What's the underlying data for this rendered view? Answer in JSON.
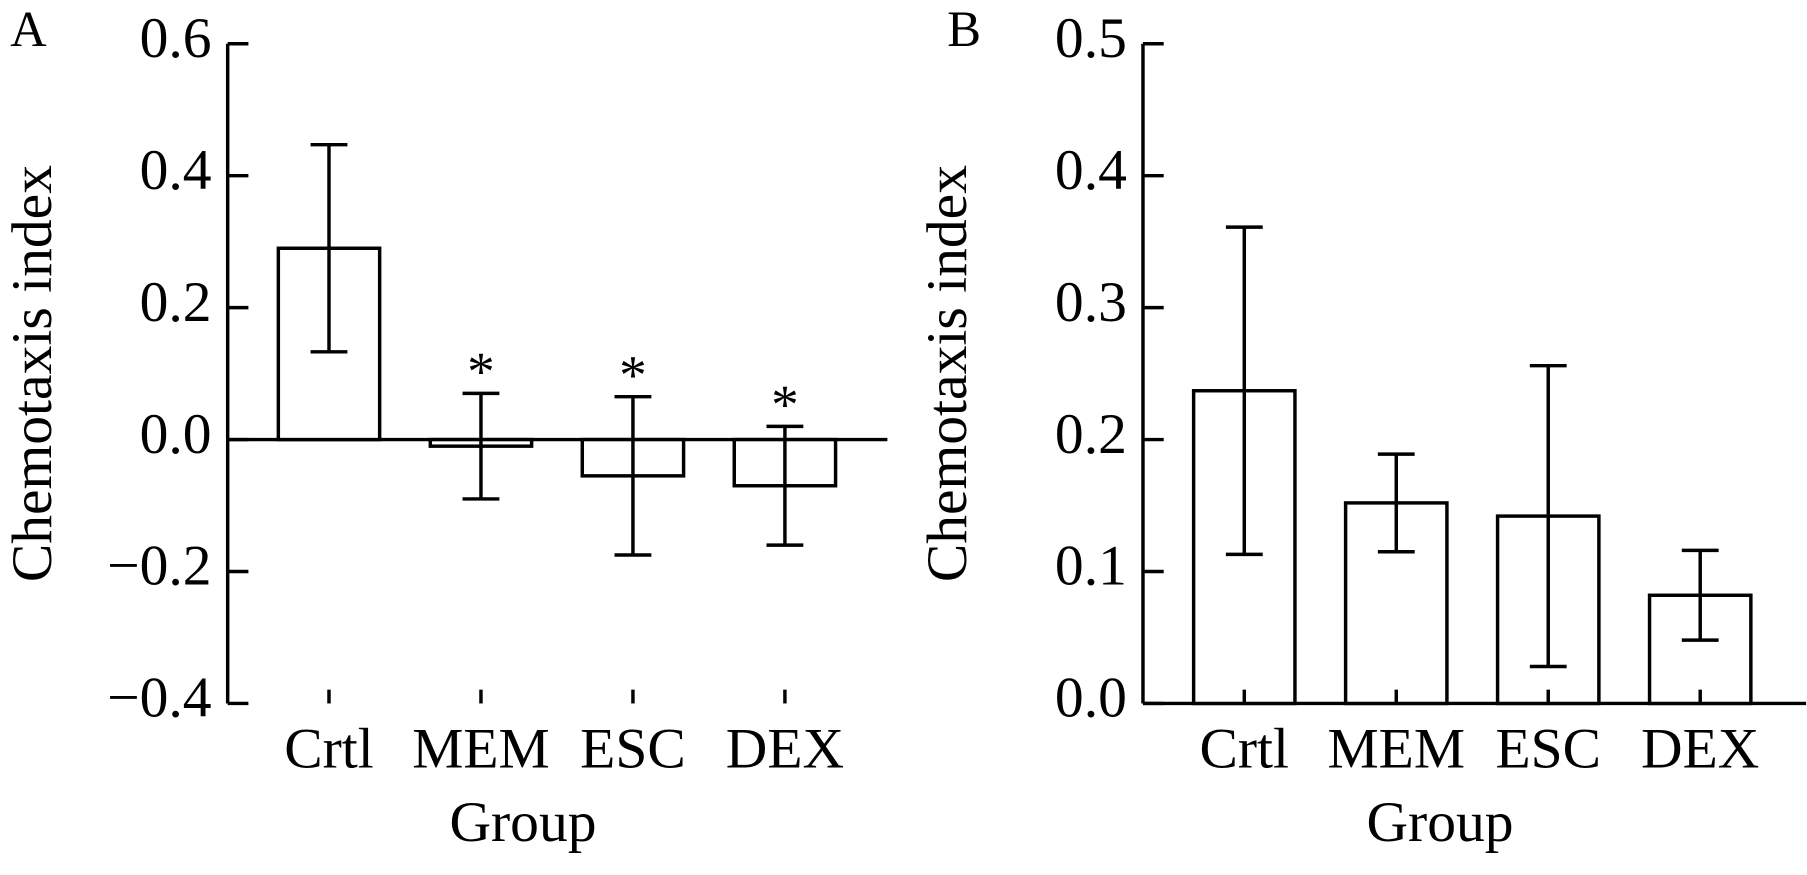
{
  "chart_data": [
    {
      "type": "bar",
      "panel": "A",
      "xlabel": "Group",
      "ylabel": "Chemotaxis index",
      "categories": [
        "Crtl",
        "MEM",
        "ESC",
        "DEX"
      ],
      "values": [
        0.29,
        -0.01,
        -0.055,
        -0.07
      ],
      "errors": [
        0.157,
        0.08,
        0.12,
        0.09
      ],
      "color": "#ffffff",
      "ylim": [
        -0.4,
        0.6
      ],
      "yticks": [
        {
          "value": -0.4,
          "label": "−0.4"
        },
        {
          "value": -0.2,
          "label": "−0.2"
        },
        {
          "value": 0,
          "label": "0.0"
        },
        0.2,
        0.4,
        0.6
      ],
      "annotations": [
        {
          "text": "*",
          "x": "MEM"
        },
        {
          "text": "*",
          "x": "ESC"
        },
        {
          "text": "*",
          "x": "DEX"
        }
      ]
    },
    {
      "type": "bar",
      "panel": "B",
      "xlabel": "Group",
      "ylabel": "Chemotaxis index",
      "categories": [
        "Crtl",
        "MEM",
        "ESC",
        "DEX"
      ],
      "values": [
        0.237,
        0.152,
        0.142,
        0.082
      ],
      "errors": [
        0.124,
        0.037,
        0.114,
        0.034
      ],
      "color": "#ffffff",
      "ylim": [
        0,
        0.5
      ],
      "yticks": [
        {
          "value": 0,
          "label": "0.0"
        },
        0.1,
        0.2,
        0.3,
        0.4,
        0.5
      ]
    }
  ]
}
